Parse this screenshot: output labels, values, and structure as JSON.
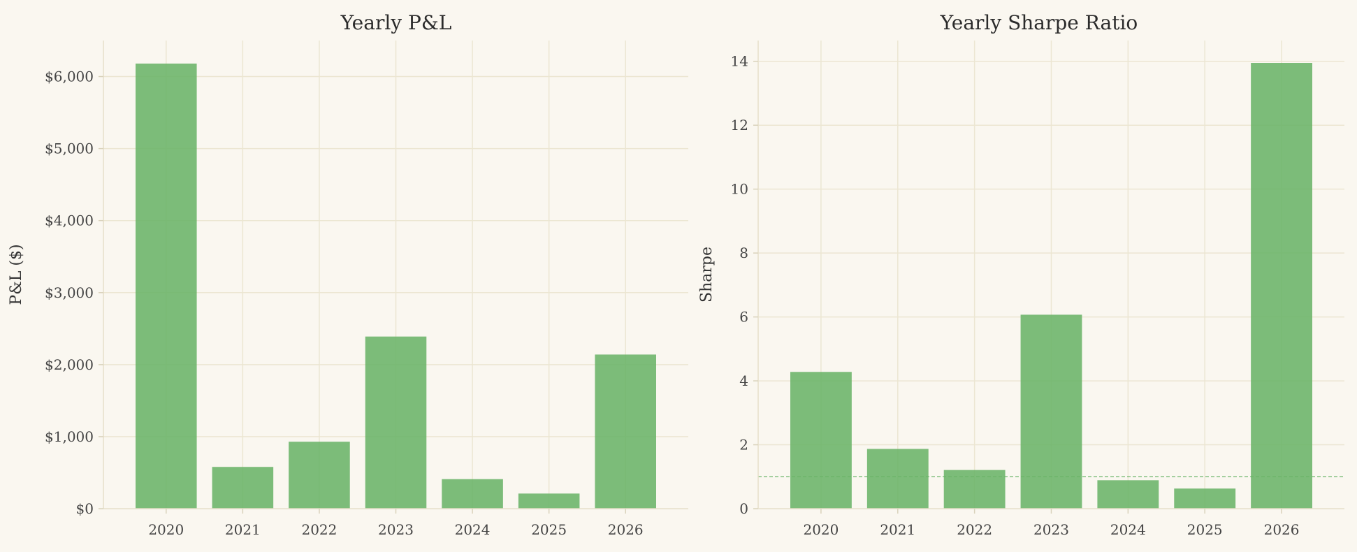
{
  "colors": {
    "background": "#faf7f0",
    "bar": "#6ab468",
    "grid": "#ece6d2"
  },
  "chart_data": [
    {
      "type": "bar",
      "title": "Yearly P&L",
      "xlabel": "",
      "ylabel": "P&L ($)",
      "categories": [
        "2020",
        "2021",
        "2022",
        "2023",
        "2024",
        "2025",
        "2026"
      ],
      "values": [
        6180,
        580,
        930,
        2390,
        410,
        210,
        2140
      ],
      "ylim": [
        0,
        6500
      ],
      "yticks": [
        0,
        1000,
        2000,
        3000,
        4000,
        5000,
        6000
      ],
      "ytick_labels": [
        "$0",
        "$1,000",
        "$2,000",
        "$3,000",
        "$4,000",
        "$5,000",
        "$6,000"
      ],
      "grid": true
    },
    {
      "type": "bar",
      "title": "Yearly Sharpe Ratio",
      "xlabel": "",
      "ylabel": "Sharpe",
      "categories": [
        "2020",
        "2021",
        "2022",
        "2023",
        "2024",
        "2025",
        "2026"
      ],
      "values": [
        4.28,
        1.87,
        1.21,
        6.07,
        0.89,
        0.63,
        13.95
      ],
      "ylim": [
        0,
        14.65
      ],
      "yticks": [
        0,
        2,
        4,
        6,
        8,
        10,
        12,
        14
      ],
      "ytick_labels": [
        "0",
        "2",
        "4",
        "6",
        "8",
        "10",
        "12",
        "14"
      ],
      "reference_line": 1.0,
      "grid": true
    }
  ]
}
